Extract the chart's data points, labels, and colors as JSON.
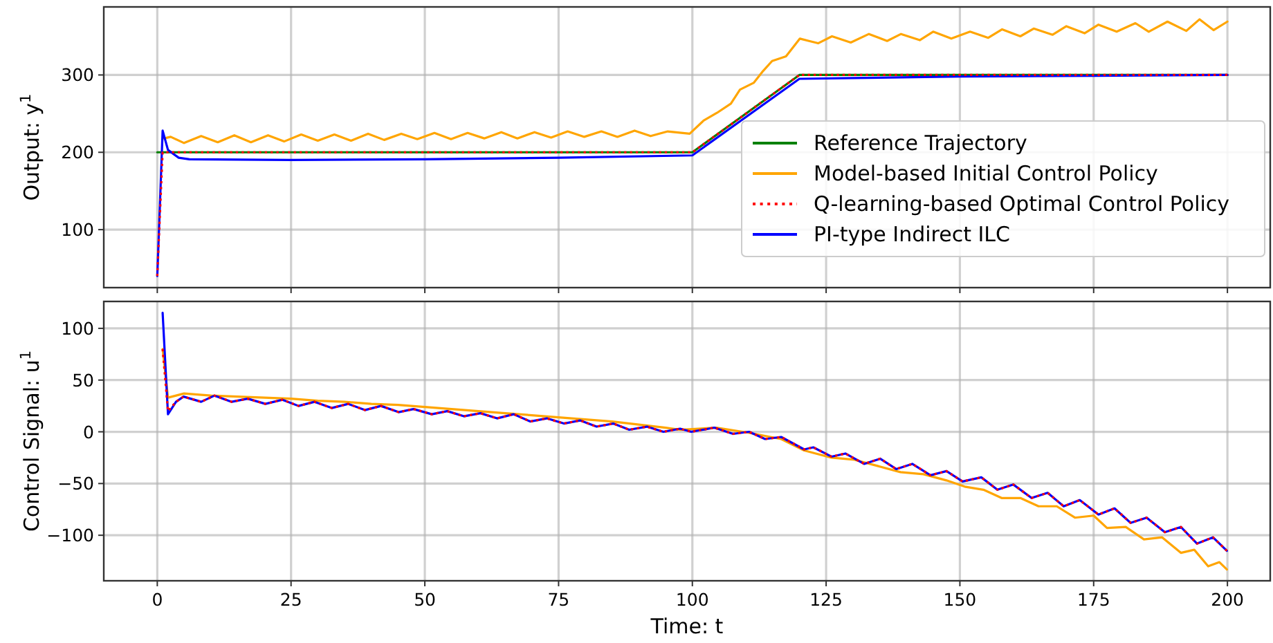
{
  "chart_data": [
    {
      "type": "line",
      "ylabel": "Output: $^{}$y$^{1}$",
      "xlim": [
        -10,
        208
      ],
      "ylim": [
        25,
        388
      ],
      "xticks": [
        0,
        25,
        50,
        75,
        100,
        125,
        150,
        175,
        200
      ],
      "yticks": [
        100,
        200,
        300
      ],
      "tick_labels": "y",
      "grid": true,
      "legend": "right",
      "series": [
        {
          "name": "Reference Trajectory",
          "color": "#008000",
          "x": [
            0,
            100,
            120,
            200
          ],
          "values": [
            200,
            200,
            300,
            300
          ]
        },
        {
          "name": "Model-based Initial Control Policy",
          "color": "#ffa500",
          "x": [
            1.3,
            2.5,
            5,
            8.2,
            11.3,
            14.4,
            17.5,
            20.7,
            23.7,
            26.9,
            30,
            33.1,
            36.2,
            39.4,
            42.4,
            45.6,
            48.6,
            51.8,
            54.9,
            58,
            61.1,
            64.3,
            67.3,
            70.5,
            73.6,
            76.7,
            79.8,
            83,
            86,
            89.2,
            92.2,
            95.4,
            99.5,
            102.1,
            104.6,
            107.2,
            108.9,
            111.5,
            113.2,
            114.9,
            117.5,
            120.1,
            121.8,
            123.5,
            126.1,
            129.6,
            133,
            136.4,
            139,
            142.5,
            145,
            148.4,
            151.9,
            155.3,
            157.9,
            161.3,
            163.8,
            167.3,
            169.9,
            173.3,
            175.9,
            179.3,
            182.8,
            185.3,
            188.8,
            192.3,
            194.8,
            197.4,
            200
          ],
          "values": [
            218,
            220,
            212,
            221,
            213,
            222,
            213,
            222,
            214,
            223,
            215,
            223,
            215,
            224,
            216,
            224,
            217,
            225,
            217,
            225,
            218,
            226,
            218,
            226,
            219,
            227,
            220,
            227,
            220,
            228,
            221,
            227,
            224,
            241,
            251,
            263,
            281,
            290,
            305,
            318,
            324,
            347,
            344,
            341,
            350,
            342,
            353,
            344,
            353,
            345,
            356,
            347,
            356,
            348,
            359,
            350,
            360,
            352,
            363,
            354,
            365,
            356,
            367,
            356,
            369,
            357,
            372,
            358,
            369
          ]
        },
        {
          "name": "Q-learning-based Optimal Control Policy",
          "color": "#ff0000",
          "line_style": "dotted",
          "x": [
            0,
            1,
            100,
            120,
            200
          ],
          "values": [
            40,
            200,
            200,
            300,
            300
          ]
        },
        {
          "name": "PI-type Indirect ILC",
          "color": "#0000ff",
          "x": [
            0,
            1,
            2,
            4,
            6,
            25,
            50,
            75,
            100,
            120,
            130,
            150,
            175,
            200
          ],
          "values": [
            40,
            228,
            203,
            193,
            191,
            190,
            191,
            193,
            196,
            295,
            296,
            298,
            299,
            300
          ]
        }
      ]
    },
    {
      "type": "line",
      "xlabel": "Time: t",
      "ylabel": "Control Signal: $^{}$u$^{1}$",
      "xlim": [
        -10,
        208
      ],
      "ylim": [
        -144,
        126
      ],
      "xticks": [
        0,
        25,
        50,
        75,
        100,
        125,
        150,
        175,
        200
      ],
      "yticks": [
        -100,
        -50,
        0,
        50,
        100
      ],
      "grid": true,
      "series": [
        {
          "color": "#ffa500",
          "x": [
            1,
            2,
            5,
            10,
            15,
            20,
            25,
            30,
            35,
            40,
            45,
            50,
            55,
            60,
            65,
            70,
            75,
            80,
            85,
            90,
            95,
            97.7,
            104.5,
            110.6,
            116.6,
            120.9,
            126,
            130.3,
            134.6,
            138.9,
            143.2,
            147.5,
            150.9,
            154.4,
            157.8,
            161.3,
            164.7,
            168.1,
            171.5,
            175,
            177.5,
            181,
            184.4,
            187.8,
            191.3,
            193.8,
            196.4,
            198.5,
            199.9
          ],
          "values": [
            80,
            33,
            37,
            35,
            34,
            33,
            32,
            30,
            29,
            27,
            26,
            24,
            22,
            20,
            18,
            16,
            14,
            12,
            10,
            7,
            4,
            2,
            4,
            -1,
            -7,
            -18,
            -25,
            -27,
            -33,
            -39,
            -41,
            -47,
            -53,
            -56,
            -64,
            -64,
            -72,
            -72,
            -83,
            -81,
            -93,
            -92,
            -104,
            -102,
            -117,
            -114,
            -130,
            -126,
            -133
          ]
        },
        {
          "color": "#0000ff",
          "x": [
            1,
            2,
            3.5,
            4.9,
            8.2,
            10.7,
            13.9,
            16.9,
            20.2,
            23.4,
            26.4,
            29.4,
            32.6,
            35.7,
            38.8,
            41.8,
            45.1,
            47.9,
            51.3,
            54.2,
            57.3,
            60.4,
            63.5,
            66.6,
            69.7,
            72.8,
            76,
            79,
            82.1,
            85.2,
            88.2,
            91.5,
            94.6,
            97.7,
            99.8,
            104.1,
            107.6,
            110.6,
            113.6,
            116.6,
            120.9,
            122.6,
            126,
            128.6,
            132.1,
            135.1,
            138.1,
            141.1,
            144.5,
            147.5,
            150.5,
            154,
            157,
            160,
            163.4,
            166.4,
            169.4,
            172.4,
            175.9,
            178.9,
            181.9,
            184.9,
            188.3,
            191.3,
            194.3,
            197.3,
            199.9
          ],
          "values": [
            115,
            17,
            29,
            34,
            29,
            35,
            29,
            32,
            27,
            31,
            25,
            29,
            23,
            27,
            21,
            25,
            19,
            22,
            17,
            20,
            15,
            18,
            13,
            17,
            10,
            13,
            8,
            11,
            5,
            8,
            2,
            5,
            0,
            3,
            0,
            4,
            -2,
            0,
            -7,
            -5,
            -17,
            -15,
            -24,
            -21,
            -31,
            -26,
            -36,
            -31,
            -42,
            -38,
            -48,
            -44,
            -56,
            -51,
            -64,
            -59,
            -72,
            -66,
            -80,
            -74,
            -88,
            -83,
            -97,
            -92,
            -108,
            -102,
            -115
          ]
        },
        {
          "color": "#ff0000",
          "line_style": "dotted",
          "x": [
            1,
            2,
            3.5,
            4.9,
            8.2,
            10.7,
            13.9,
            16.9,
            20.2,
            23.4,
            26.4,
            29.4,
            32.6,
            35.7,
            38.8,
            41.8,
            45.1,
            47.9,
            51.3,
            54.2,
            57.3,
            60.4,
            63.5,
            66.6,
            69.7,
            72.8,
            76,
            79,
            82.1,
            85.2,
            88.2,
            91.5,
            94.6,
            97.7,
            99.8,
            104.1,
            107.6,
            110.6,
            113.6,
            116.6,
            120.9,
            122.6,
            126,
            128.6,
            132.1,
            135.1,
            138.1,
            141.1,
            144.5,
            147.5,
            150.5,
            154,
            157,
            160,
            163.4,
            166.4,
            169.4,
            172.4,
            175.9,
            178.9,
            181.9,
            184.9,
            188.3,
            191.3,
            194.3,
            197.3,
            199.9
          ],
          "values": [
            80,
            20,
            29,
            34,
            29,
            35,
            29,
            32,
            27,
            31,
            25,
            29,
            23,
            27,
            21,
            25,
            19,
            22,
            17,
            20,
            15,
            18,
            13,
            17,
            10,
            13,
            8,
            11,
            5,
            8,
            2,
            5,
            0,
            3,
            0,
            4,
            -2,
            0,
            -7,
            -5,
            -17,
            -15,
            -24,
            -21,
            -31,
            -26,
            -36,
            -31,
            -42,
            -38,
            -48,
            -44,
            -56,
            -51,
            -64,
            -59,
            -72,
            -66,
            -80,
            -74,
            -88,
            -83,
            -97,
            -92,
            -108,
            -102,
            -115
          ]
        }
      ]
    }
  ]
}
